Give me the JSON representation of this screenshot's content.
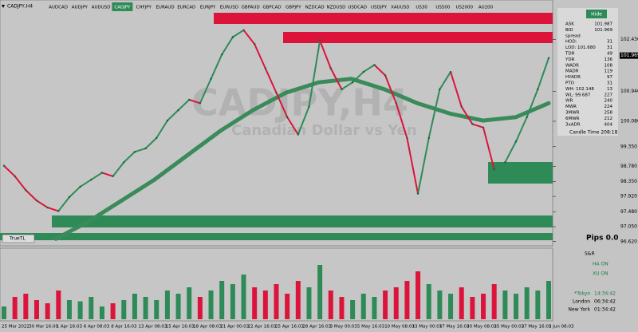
{
  "toolbar": {
    "symbol_label": "CADJPY,H4",
    "symbols": [
      "AUDCAD",
      "AUDJPY",
      "AUDUSD",
      "CADJPY",
      "CHFJPY",
      "EURAUD",
      "EURCAD",
      "EURJPY",
      "EURUSD",
      "GBPAUD",
      "GBPCAD",
      "GBPJPY",
      "NZDCAD",
      "NZDUSD",
      "USDCAD",
      "USDJPY",
      "XAUUSD",
      "US30",
      "US500",
      "US2000",
      "AU200"
    ]
  },
  "chart": {
    "watermark": "CADJPY,H4",
    "watermark_sub": "Canadian Dollar vs Yen",
    "trendline_label": "TrueTL",
    "pips": "Pips 0.0",
    "ylim": [
      96.5,
      103.2
    ],
    "yticks": [
      {
        "value": 102.43,
        "label": "102.430"
      },
      {
        "value": 100.94,
        "label": "100.940"
      },
      {
        "value": 100.08,
        "label": "100.080"
      },
      {
        "value": 99.35,
        "label": "99.350"
      },
      {
        "value": 98.78,
        "label": "98.780"
      },
      {
        "value": 98.35,
        "label": "98.350"
      },
      {
        "value": 97.92,
        "label": "97.920"
      },
      {
        "value": 97.48,
        "label": "97.480"
      },
      {
        "value": 97.05,
        "label": "97.050"
      },
      {
        "value": 96.62,
        "label": "96.620"
      }
    ],
    "current_price": 101.969,
    "closes": [
      98.8,
      98.5,
      98.1,
      97.8,
      97.6,
      97.5,
      97.9,
      98.2,
      98.4,
      98.6,
      98.5,
      98.9,
      99.2,
      99.3,
      99.6,
      100.1,
      100.4,
      100.7,
      100.6,
      101.3,
      102.0,
      102.5,
      102.7,
      102.3,
      101.6,
      100.9,
      100.2,
      99.7,
      100.5,
      102.4,
      101.6,
      101.0,
      101.2,
      101.5,
      101.7,
      101.4,
      100.6,
      99.6,
      98.0,
      99.6,
      101.0,
      101.5,
      100.5,
      100.0,
      99.9,
      98.7,
      98.9,
      99.5,
      100.2,
      101.0,
      101.9
    ],
    "ma": [
      96.7,
      97.2,
      97.8,
      98.4,
      99.1,
      99.8,
      100.4,
      100.9,
      101.2,
      101.3,
      101.0,
      100.6,
      100.3,
      100.1,
      100.2,
      100.6
    ],
    "x_labels": [
      "25 Mar 2022",
      "30 Mar 16:00",
      "1 Apr 16:03",
      "6 Apr 08:03",
      "8 Apr 16:03",
      "13 Apr 08:03",
      "15 Apr 16:03",
      "18 Apr 08:03",
      "21 Apr 00:03",
      "22 Apr 16:03",
      "25 Apr 16:03",
      "28 Apr 16:03",
      "3 May 00:03",
      "5 May 16:03",
      "10 May 08:03",
      "13 May 00:03",
      "17 May 16:03",
      "20 May 08:03",
      "25 May 00:03",
      "27 May 16:03",
      "1 Jun 08:03"
    ],
    "volume_ylim": [
      0,
      100
    ],
    "volumes": [
      20,
      35,
      40,
      30,
      25,
      45,
      30,
      28,
      35,
      20,
      25,
      30,
      40,
      35,
      30,
      45,
      40,
      50,
      35,
      45,
      60,
      55,
      70,
      50,
      45,
      55,
      40,
      60,
      50,
      85,
      45,
      35,
      30,
      40,
      35,
      45,
      50,
      60,
      75,
      55,
      45,
      40,
      50,
      35,
      40,
      55,
      45,
      40,
      50,
      45,
      60
    ]
  },
  "panel": {
    "hide": "Hide",
    "rows": [
      [
        "ASK",
        "101.987"
      ],
      [
        "BID",
        "101.969"
      ],
      [
        "spread",
        ""
      ],
      [
        "HOD:",
        "31"
      ],
      [
        "LOD: 101.680",
        "31"
      ],
      [
        "TDR",
        "49"
      ],
      [
        "YDR",
        "136"
      ],
      [
        "WADR",
        "108"
      ],
      [
        "MADR",
        "119"
      ],
      [
        "HYADR",
        "97"
      ],
      [
        "PTO",
        "31"
      ],
      [
        "WH: 102.148",
        "13"
      ],
      [
        "WL: 99.687",
        "227"
      ],
      [
        "WR",
        "240"
      ],
      [
        "MWR",
        "224"
      ],
      [
        "3MWR",
        "258"
      ],
      [
        "6MWR",
        "212"
      ],
      [
        "3xADR",
        "404"
      ]
    ],
    "candle_time": "Candle Time  208:18"
  },
  "sessions": {
    "title": "S&R",
    "ha": "HA ON",
    "xu": "XU ON",
    "rows": [
      [
        "*Tokyo",
        "14:34:42"
      ],
      [
        "London",
        "06:34:42"
      ],
      [
        "New York",
        "01:34:42"
      ]
    ]
  }
}
